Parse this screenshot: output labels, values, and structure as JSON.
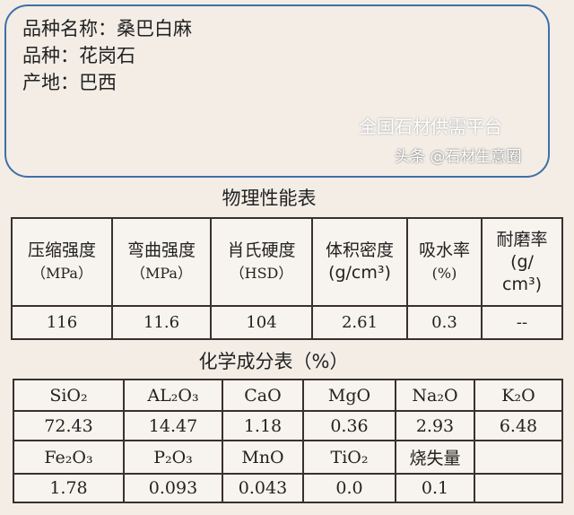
{
  "info": {
    "name": "品种名称：桑巴白麻",
    "variety": "品种：花岗石",
    "origin": "产地：巴西"
  },
  "physical": {
    "title": "物理性能表",
    "headers": [
      [
        "压缩强度",
        "（MPa）"
      ],
      [
        "弯曲强度",
        "（MPa）"
      ],
      [
        "肖氏硬度",
        "（HSD）"
      ],
      [
        "体积密度",
        "(g/cm³)"
      ],
      [
        "吸水率",
        "(%)"
      ],
      [
        "耐磨率",
        "(g/",
        "cm³)"
      ]
    ],
    "values": [
      "116",
      "11.6",
      "104",
      "2.61",
      "0.3",
      "--"
    ]
  },
  "chemical": {
    "title": "化学成分表（%）",
    "row1_headers": [
      "SiO₂",
      "AL₂O₃",
      "CaO",
      "MgO",
      "Na₂O",
      "K₂O"
    ],
    "row1_values": [
      "72.43",
      "14.47",
      "1.18",
      "0.36",
      "2.93",
      "6.48"
    ],
    "row2_headers": [
      "Fe₂O₃",
      "P₂O₃",
      "MnO",
      "TiO₂",
      "烧失量",
      ""
    ],
    "row2_values": [
      "1.78",
      "0.093",
      "0.043",
      "0.0",
      "0.1",
      ""
    ]
  },
  "watermark": {
    "faint": "全国石材供需平台",
    "source": "头条 @石材生意圈"
  }
}
